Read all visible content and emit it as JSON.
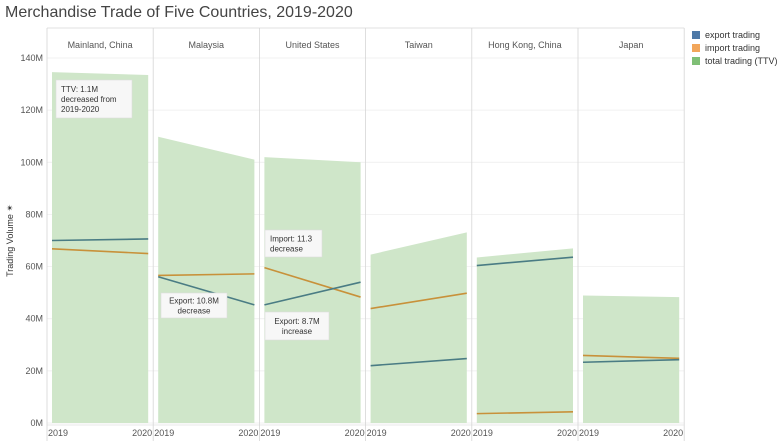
{
  "title": "Merchandise Trade of Five Countries, 2019-2020",
  "chart_data": {
    "type": "line",
    "panels": [
      {
        "name": "Mainland, China",
        "x": [
          "2019",
          "2020"
        ],
        "series": [
          {
            "name": "export trading",
            "values": [
              70,
              70.6
            ]
          },
          {
            "name": "import trading",
            "values": [
              66.8,
              65
            ]
          },
          {
            "name": "total trading (TTV)",
            "values": [
              134.6,
              133.5
            ]
          }
        ]
      },
      {
        "name": "Malaysia",
        "x": [
          "2019",
          "2020"
        ],
        "series": [
          {
            "name": "export trading",
            "values": [
              56.1,
              45.3
            ]
          },
          {
            "name": "import trading",
            "values": [
              56.6,
              57.2
            ]
          },
          {
            "name": "total trading (TTV)",
            "values": [
              109.8,
              101
            ]
          }
        ]
      },
      {
        "name": "United States",
        "x": [
          "2019",
          "2020"
        ],
        "series": [
          {
            "name": "export trading",
            "values": [
              45.3,
              54
            ]
          },
          {
            "name": "import trading",
            "values": [
              59.6,
              48.3
            ]
          },
          {
            "name": "total trading (TTV)",
            "values": [
              102,
              100
            ]
          }
        ]
      },
      {
        "name": "Taiwan",
        "x": [
          "2019",
          "2020"
        ],
        "series": [
          {
            "name": "export trading",
            "values": [
              22,
              24.7
            ]
          },
          {
            "name": "import trading",
            "values": [
              43.9,
              49.8
            ]
          },
          {
            "name": "total trading (TTV)",
            "values": [
              64.6,
              73.1
            ]
          }
        ]
      },
      {
        "name": "Hong Kong, China",
        "x": [
          "2019",
          "2020"
        ],
        "series": [
          {
            "name": "export trading",
            "values": [
              60.4,
              63.6
            ]
          },
          {
            "name": "import trading",
            "values": [
              3.6,
              4.3
            ]
          },
          {
            "name": "total trading (TTV)",
            "values": [
              63.5,
              67
            ]
          }
        ]
      },
      {
        "name": "Japan",
        "x": [
          "2019",
          "2020"
        ],
        "series": [
          {
            "name": "export trading",
            "values": [
              23.3,
              24.3
            ]
          },
          {
            "name": "import trading",
            "values": [
              25.9,
              24.8
            ]
          },
          {
            "name": "total trading (TTV)",
            "values": [
              48.9,
              48.3
            ]
          }
        ]
      }
    ],
    "ylabel": "Trading Volume",
    "ylim": [
      0,
      140
    ],
    "yticks": [
      {
        "value": 0,
        "label": "0M"
      },
      {
        "value": 20,
        "label": "20M"
      },
      {
        "value": 40,
        "label": "40M"
      },
      {
        "value": 60,
        "label": "60M"
      },
      {
        "value": 80,
        "label": "80M"
      },
      {
        "value": 100,
        "label": "100M"
      },
      {
        "value": 120,
        "label": "120M"
      },
      {
        "value": 140,
        "label": "140M"
      }
    ],
    "grid": true,
    "legend_position": "right",
    "legend": [
      {
        "name": "export trading",
        "color": "#4e79a7"
      },
      {
        "name": "import trading",
        "color": "#f2a65a"
      },
      {
        "name": "total trading (TTV)",
        "color": "#7fbf76"
      }
    ],
    "colors": {
      "export_line": "#4a7c84",
      "import_line": "#c8913a",
      "ttv_area": "#cfe6c9",
      "grid": "#ececec",
      "divider": "#d6d6d6"
    },
    "annotations": [
      {
        "panel": 0,
        "lines": [
          "TTV: 1.1M",
          "decreased from",
          "2019-2020"
        ]
      },
      {
        "panel": 1,
        "lines": [
          "Export: 10.8M",
          "decrease"
        ]
      },
      {
        "panel": 2,
        "lines": [
          "Import: 11.3",
          "decrease"
        ]
      },
      {
        "panel": 2,
        "lines": [
          "Export: 8.7M",
          "increase"
        ]
      }
    ]
  }
}
